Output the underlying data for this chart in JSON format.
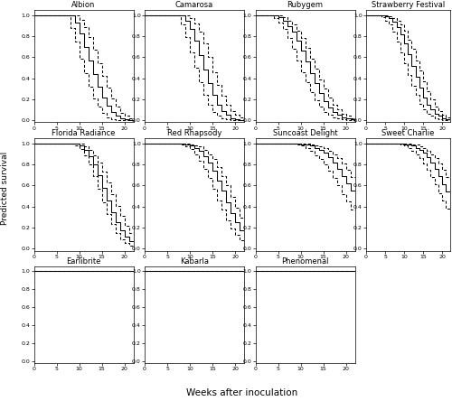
{
  "cultivars_row1": [
    "Albion",
    "Camarosa",
    "Rubygem",
    "Strawberry Festival"
  ],
  "cultivars_row2": [
    "Florida Radiance",
    "Red Rhapsody",
    "Suncoast Delight",
    "Sweet Charlie"
  ],
  "cultivars_row3": [
    "Earlibrite",
    "Kabarla",
    "Phenomenal"
  ],
  "xlabel": "Weeks after inoculation",
  "ylabel": "Predicted survival",
  "xlim": [
    0,
    22
  ],
  "ylim": [
    -0.02,
    1.05
  ],
  "xticks": [
    0,
    5,
    10,
    15,
    20
  ],
  "yticks": [
    0.0,
    0.2,
    0.4,
    0.6,
    0.8,
    1.0
  ],
  "ytick_labels": [
    "0.0",
    "0.2",
    "0.4",
    "0.6",
    "0.8",
    "1.0"
  ],
  "survival_data": {
    "Albion": {
      "solid": {
        "x": [
          0,
          8,
          9,
          10,
          11,
          12,
          13,
          14,
          15,
          16,
          17,
          18,
          19,
          20,
          21,
          22
        ],
        "y": [
          1.0,
          1.0,
          0.93,
          0.83,
          0.7,
          0.57,
          0.44,
          0.32,
          0.22,
          0.14,
          0.08,
          0.04,
          0.02,
          0.01,
          0.005,
          0.005
        ]
      },
      "upper": {
        "x": [
          0,
          9,
          10,
          11,
          12,
          13,
          14,
          15,
          16,
          17,
          18,
          19,
          20,
          21,
          22
        ],
        "y": [
          1.0,
          1.0,
          0.96,
          0.89,
          0.79,
          0.67,
          0.54,
          0.42,
          0.31,
          0.21,
          0.13,
          0.07,
          0.04,
          0.02,
          0.01
        ]
      },
      "lower": {
        "x": [
          0,
          7,
          8,
          9,
          10,
          11,
          12,
          13,
          14,
          15,
          16,
          17,
          18,
          19,
          20,
          21,
          22
        ],
        "y": [
          1.0,
          1.0,
          0.88,
          0.75,
          0.59,
          0.45,
          0.32,
          0.21,
          0.13,
          0.07,
          0.03,
          0.01,
          0.005,
          0.002,
          0.001,
          0.0,
          0.0
        ]
      }
    },
    "Camarosa": {
      "solid": {
        "x": [
          0,
          8,
          9,
          10,
          11,
          12,
          13,
          14,
          15,
          16,
          17,
          18,
          19,
          20,
          21,
          22
        ],
        "y": [
          1.0,
          1.0,
          0.95,
          0.87,
          0.76,
          0.62,
          0.48,
          0.35,
          0.24,
          0.15,
          0.09,
          0.05,
          0.02,
          0.01,
          0.005,
          0.002
        ]
      },
      "upper": {
        "x": [
          0,
          9,
          10,
          11,
          12,
          13,
          14,
          15,
          16,
          17,
          18,
          19,
          20,
          21,
          22
        ],
        "y": [
          1.0,
          1.0,
          0.97,
          0.92,
          0.84,
          0.73,
          0.6,
          0.46,
          0.34,
          0.23,
          0.15,
          0.09,
          0.05,
          0.03,
          0.01
        ]
      },
      "lower": {
        "x": [
          0,
          7,
          8,
          9,
          10,
          11,
          12,
          13,
          14,
          15,
          16,
          17,
          18,
          19,
          20,
          21,
          22
        ],
        "y": [
          1.0,
          1.0,
          0.91,
          0.79,
          0.65,
          0.5,
          0.36,
          0.24,
          0.15,
          0.08,
          0.04,
          0.02,
          0.01,
          0.003,
          0.001,
          0.0,
          0.0
        ]
      }
    },
    "Rubygem": {
      "solid": {
        "x": [
          0,
          4,
          5,
          6,
          7,
          8,
          9,
          10,
          11,
          12,
          13,
          14,
          15,
          16,
          17,
          18,
          19,
          20,
          21,
          22
        ],
        "y": [
          1.0,
          1.0,
          0.98,
          0.95,
          0.9,
          0.84,
          0.76,
          0.66,
          0.56,
          0.45,
          0.35,
          0.26,
          0.18,
          0.12,
          0.08,
          0.05,
          0.03,
          0.02,
          0.01,
          0.01
        ]
      },
      "upper": {
        "x": [
          0,
          5,
          6,
          7,
          8,
          9,
          10,
          11,
          12,
          13,
          14,
          15,
          16,
          17,
          18,
          19,
          20,
          21,
          22
        ],
        "y": [
          1.0,
          1.0,
          0.98,
          0.95,
          0.91,
          0.85,
          0.78,
          0.69,
          0.59,
          0.49,
          0.39,
          0.3,
          0.22,
          0.15,
          0.1,
          0.06,
          0.04,
          0.02,
          0.01
        ]
      },
      "lower": {
        "x": [
          0,
          3,
          4,
          5,
          6,
          7,
          8,
          9,
          10,
          11,
          12,
          13,
          14,
          15,
          16,
          17,
          18,
          19,
          20,
          21,
          22
        ],
        "y": [
          1.0,
          1.0,
          0.97,
          0.93,
          0.87,
          0.78,
          0.68,
          0.57,
          0.46,
          0.36,
          0.27,
          0.19,
          0.13,
          0.08,
          0.05,
          0.03,
          0.02,
          0.01,
          0.005,
          0.002,
          0.001
        ]
      }
    },
    "Strawberry Festival": {
      "solid": {
        "x": [
          0,
          4,
          5,
          6,
          7,
          8,
          9,
          10,
          11,
          12,
          13,
          14,
          15,
          16,
          17,
          18,
          19,
          20,
          21,
          22
        ],
        "y": [
          1.0,
          1.0,
          0.99,
          0.97,
          0.94,
          0.89,
          0.82,
          0.73,
          0.63,
          0.52,
          0.41,
          0.31,
          0.22,
          0.15,
          0.1,
          0.06,
          0.04,
          0.02,
          0.01,
          0.01
        ]
      },
      "upper": {
        "x": [
          0,
          5,
          6,
          7,
          8,
          9,
          10,
          11,
          12,
          13,
          14,
          15,
          16,
          17,
          18,
          19,
          20,
          21,
          22
        ],
        "y": [
          1.0,
          1.0,
          0.99,
          0.97,
          0.95,
          0.91,
          0.85,
          0.77,
          0.68,
          0.57,
          0.47,
          0.37,
          0.28,
          0.2,
          0.13,
          0.09,
          0.05,
          0.03,
          0.02
        ]
      },
      "lower": {
        "x": [
          0,
          3,
          4,
          5,
          6,
          7,
          8,
          9,
          10,
          11,
          12,
          13,
          14,
          15,
          16,
          17,
          18,
          19,
          20,
          21,
          22
        ],
        "y": [
          1.0,
          1.0,
          0.98,
          0.95,
          0.91,
          0.84,
          0.75,
          0.65,
          0.54,
          0.43,
          0.33,
          0.24,
          0.16,
          0.1,
          0.06,
          0.04,
          0.02,
          0.01,
          0.005,
          0.002,
          0.001
        ]
      }
    },
    "Florida Radiance": {
      "solid": {
        "x": [
          0,
          9,
          10,
          11,
          12,
          13,
          14,
          15,
          16,
          17,
          18,
          19,
          20,
          21,
          22
        ],
        "y": [
          1.0,
          1.0,
          0.98,
          0.94,
          0.88,
          0.8,
          0.7,
          0.58,
          0.46,
          0.35,
          0.25,
          0.17,
          0.11,
          0.07,
          0.04
        ]
      },
      "upper": {
        "x": [
          0,
          10,
          11,
          12,
          13,
          14,
          15,
          16,
          17,
          18,
          19,
          20,
          21,
          22
        ],
        "y": [
          1.0,
          1.0,
          0.97,
          0.94,
          0.89,
          0.82,
          0.73,
          0.63,
          0.52,
          0.41,
          0.31,
          0.22,
          0.15,
          0.09
        ]
      },
      "lower": {
        "x": [
          0,
          8,
          9,
          10,
          11,
          12,
          13,
          14,
          15,
          16,
          17,
          18,
          19,
          20,
          21,
          22
        ],
        "y": [
          1.0,
          1.0,
          0.98,
          0.95,
          0.89,
          0.8,
          0.69,
          0.57,
          0.44,
          0.33,
          0.23,
          0.15,
          0.09,
          0.05,
          0.03,
          0.01
        ]
      }
    },
    "Red Rhapsody": {
      "solid": {
        "x": [
          0,
          8,
          9,
          10,
          11,
          12,
          13,
          14,
          15,
          16,
          17,
          18,
          19,
          20,
          21,
          22
        ],
        "y": [
          1.0,
          1.0,
          0.99,
          0.98,
          0.96,
          0.93,
          0.88,
          0.82,
          0.74,
          0.65,
          0.55,
          0.44,
          0.34,
          0.25,
          0.17,
          0.11
        ]
      },
      "upper": {
        "x": [
          0,
          9,
          10,
          11,
          12,
          13,
          14,
          15,
          16,
          17,
          18,
          19,
          20,
          21,
          22
        ],
        "y": [
          1.0,
          1.0,
          0.99,
          0.98,
          0.97,
          0.94,
          0.9,
          0.85,
          0.78,
          0.69,
          0.6,
          0.49,
          0.39,
          0.29,
          0.21
        ]
      },
      "lower": {
        "x": [
          0,
          7,
          8,
          9,
          10,
          11,
          12,
          13,
          14,
          15,
          16,
          17,
          18,
          19,
          20,
          21,
          22
        ],
        "y": [
          1.0,
          1.0,
          0.99,
          0.97,
          0.95,
          0.9,
          0.84,
          0.76,
          0.67,
          0.57,
          0.46,
          0.37,
          0.27,
          0.19,
          0.13,
          0.08,
          0.04
        ]
      }
    },
    "Suncoast Delight": {
      "solid": {
        "x": [
          0,
          9,
          10,
          11,
          12,
          13,
          14,
          15,
          16,
          17,
          18,
          19,
          20,
          21,
          22
        ],
        "y": [
          1.0,
          1.0,
          0.99,
          0.99,
          0.98,
          0.96,
          0.94,
          0.91,
          0.87,
          0.82,
          0.76,
          0.69,
          0.62,
          0.55,
          0.47
        ]
      },
      "upper": {
        "x": [
          0,
          10,
          11,
          12,
          13,
          14,
          15,
          16,
          17,
          18,
          19,
          20,
          21,
          22
        ],
        "y": [
          1.0,
          1.0,
          1.0,
          0.99,
          0.98,
          0.97,
          0.96,
          0.93,
          0.9,
          0.86,
          0.81,
          0.75,
          0.68,
          0.61
        ]
      },
      "lower": {
        "x": [
          0,
          8,
          9,
          10,
          11,
          12,
          13,
          14,
          15,
          16,
          17,
          18,
          19,
          20,
          21,
          22
        ],
        "y": [
          1.0,
          1.0,
          0.99,
          0.98,
          0.96,
          0.93,
          0.89,
          0.85,
          0.8,
          0.74,
          0.67,
          0.6,
          0.52,
          0.45,
          0.37,
          0.3
        ]
      }
    },
    "Sweet Charlie": {
      "solid": {
        "x": [
          0,
          9,
          10,
          11,
          12,
          13,
          14,
          15,
          16,
          17,
          18,
          19,
          20,
          21,
          22
        ],
        "y": [
          1.0,
          1.0,
          0.99,
          0.99,
          0.98,
          0.96,
          0.94,
          0.91,
          0.87,
          0.82,
          0.76,
          0.69,
          0.61,
          0.54,
          0.46
        ]
      },
      "upper": {
        "x": [
          0,
          10,
          11,
          12,
          13,
          14,
          15,
          16,
          17,
          18,
          19,
          20,
          21,
          22
        ],
        "y": [
          1.0,
          1.0,
          1.0,
          0.99,
          0.99,
          0.97,
          0.96,
          0.93,
          0.9,
          0.86,
          0.81,
          0.75,
          0.68,
          0.61
        ]
      },
      "lower": {
        "x": [
          0,
          8,
          9,
          10,
          11,
          12,
          13,
          14,
          15,
          16,
          17,
          18,
          19,
          20,
          21,
          22
        ],
        "y": [
          1.0,
          1.0,
          0.99,
          0.98,
          0.96,
          0.93,
          0.9,
          0.86,
          0.81,
          0.75,
          0.68,
          0.61,
          0.53,
          0.46,
          0.38,
          0.31
        ]
      }
    },
    "Earlibrite": {
      "solid": {
        "x": [
          0,
          22
        ],
        "y": [
          1.0,
          1.0
        ]
      },
      "upper": {
        "x": [
          0,
          22
        ],
        "y": [
          1.0,
          1.0
        ]
      },
      "lower": {
        "x": [
          0,
          22
        ],
        "y": [
          1.0,
          1.0
        ]
      }
    },
    "Kabarla": {
      "solid": {
        "x": [
          0,
          22
        ],
        "y": [
          1.0,
          1.0
        ]
      },
      "upper": {
        "x": [
          0,
          22
        ],
        "y": [
          1.0,
          1.0
        ]
      },
      "lower": {
        "x": [
          0,
          22
        ],
        "y": [
          1.0,
          1.0
        ]
      }
    },
    "Phenomenal": {
      "solid": {
        "x": [
          0,
          22
        ],
        "y": [
          1.0,
          1.0
        ]
      },
      "upper": {
        "x": [
          0,
          22
        ],
        "y": [
          1.0,
          1.0
        ]
      },
      "lower": {
        "x": [
          0,
          22
        ],
        "y": [
          1.0,
          1.0
        ]
      }
    }
  }
}
